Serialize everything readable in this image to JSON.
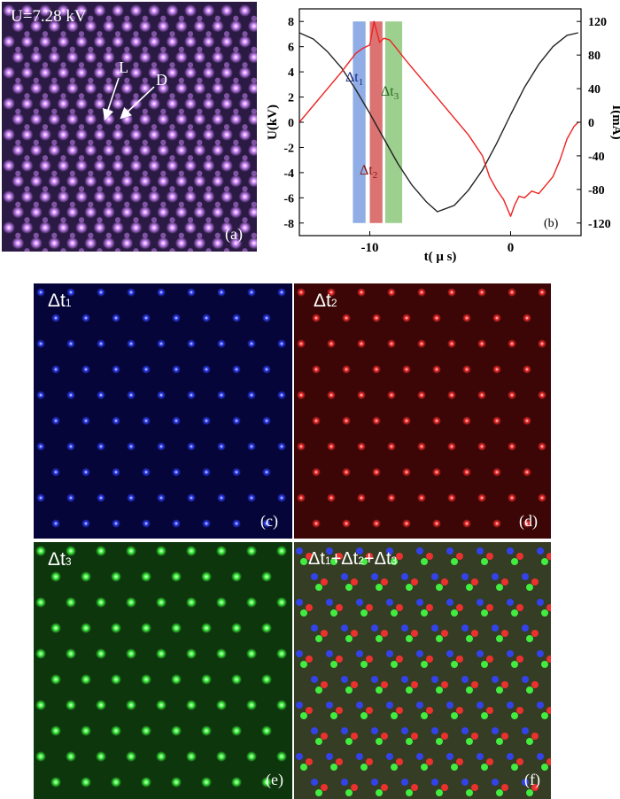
{
  "panel_a": {
    "voltage_label": "U=7.28 kV",
    "label_l": "L",
    "label_d": "D",
    "panel_label": "(a)"
  },
  "panel_b": {
    "panel_label": "(b)",
    "band1_label": "Δt",
    "band1_sub": "1",
    "band2_label": "Δt",
    "band2_sub": "2",
    "band3_label": "Δt",
    "band3_sub": "3"
  },
  "chart_data": {
    "type": "line",
    "xlabel": "t( μ s)",
    "ylabel_left": "U(kV)",
    "ylabel_right": "I(mA)",
    "xlim": [
      -15,
      5
    ],
    "ylim_left": [
      -9,
      9
    ],
    "ylim_right": [
      -135,
      135
    ],
    "xticks": [
      -10,
      0
    ],
    "yticks_left": [
      8,
      6,
      4,
      2,
      0,
      -2,
      -4,
      -6,
      -8
    ],
    "yticks_right": [
      120,
      80,
      40,
      0,
      -40,
      -80,
      -120
    ],
    "voltage_series": {
      "color": "#222222",
      "axis": "left",
      "x": [
        -15,
        -14,
        -13,
        -12,
        -11,
        -10,
        -9,
        -8,
        -7,
        -6,
        -5.2,
        -4,
        -3,
        -2,
        -1,
        0,
        1,
        2,
        3,
        4,
        4.8
      ],
      "y": [
        7.1,
        6.6,
        5.6,
        4.3,
        2.6,
        0.7,
        -1.3,
        -3.3,
        -5.0,
        -6.3,
        -7.1,
        -6.6,
        -5.4,
        -3.8,
        -1.7,
        0.6,
        2.8,
        4.6,
        6.0,
        6.9,
        7.1
      ]
    },
    "current_series": {
      "color": "#ee2222",
      "axis": "right",
      "x": [
        -15,
        -14,
        -13,
        -12,
        -11,
        -10.5,
        -10,
        -9.7,
        -9.3,
        -9,
        -8.6,
        -8.2,
        -7.5,
        -7,
        -6,
        -5,
        -4,
        -3,
        -2,
        -1.5,
        -1,
        -0.5,
        0,
        0.3,
        0.6,
        1,
        1.5,
        2,
        2.5,
        3,
        3.5,
        4,
        4.5,
        4.8
      ],
      "y": [
        0,
        20,
        40,
        60,
        82,
        88,
        92,
        120,
        95,
        100,
        98,
        90,
        75,
        65,
        45,
        25,
        5,
        -15,
        -40,
        -65,
        -80,
        -92,
        -112,
        -98,
        -88,
        -90,
        -82,
        -85,
        -75,
        -65,
        -45,
        -20,
        -5,
        0
      ]
    },
    "bands": [
      {
        "x0": -11.2,
        "x1": -10.3,
        "color": "#7d9fe0"
      },
      {
        "x0": -10.0,
        "x1": -9.1,
        "color": "#d65a5a"
      },
      {
        "x0": -8.9,
        "x1": -7.7,
        "color": "#8cc77a"
      }
    ]
  },
  "panel_c": {
    "title": "Δt",
    "title_sub": "1",
    "panel_label": "(c)",
    "dot_color": "#3344ff",
    "bg_color": "#05053a"
  },
  "panel_d": {
    "title": "Δt",
    "title_sub": "2",
    "panel_label": "(d)",
    "dot_color": "#ff3030",
    "bg_color": "#3c0606"
  },
  "panel_e": {
    "title": "Δt",
    "title_sub": "3",
    "panel_label": "(e)",
    "dot_color": "#44ff44",
    "bg_color": "#0d360d"
  },
  "panel_f": {
    "title_a": "Δt",
    "title_a_sub": "1",
    "title_b": "+Δt",
    "title_b_sub": "2",
    "title_c": "+Δt",
    "title_c_sub": "3",
    "panel_label": "(f)",
    "bg_color": "#353d24"
  }
}
